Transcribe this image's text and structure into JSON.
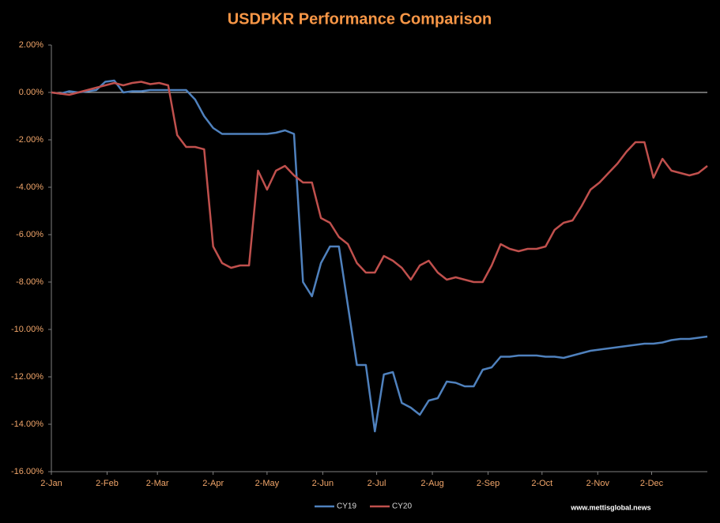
{
  "chart_data": {
    "type": "line",
    "title": "USDPKR Performance Comparison",
    "watermark": "www.mettisglobal.news",
    "x": [
      0,
      5,
      10,
      15,
      20,
      25,
      30,
      35,
      40,
      45,
      50,
      55,
      60,
      65,
      70,
      75,
      80,
      85,
      90,
      95,
      100,
      105,
      110,
      115,
      120,
      125,
      130,
      135,
      140,
      145,
      150,
      155,
      160,
      165,
      170,
      175,
      180,
      185,
      190,
      195,
      200,
      205,
      210,
      215,
      220,
      225,
      230,
      235,
      240,
      245,
      250,
      255,
      260,
      265,
      270,
      275,
      280,
      285,
      290,
      295,
      300,
      305,
      310,
      315,
      320,
      325,
      330,
      335,
      340,
      345,
      350,
      355,
      360,
      365
    ],
    "xlim": [
      0,
      365
    ],
    "xticks": [
      {
        "value": 0,
        "label": "2-Jan"
      },
      {
        "value": 31,
        "label": "2-Feb"
      },
      {
        "value": 59,
        "label": "2-Mar"
      },
      {
        "value": 90,
        "label": "2-Apr"
      },
      {
        "value": 120,
        "label": "2-May"
      },
      {
        "value": 151,
        "label": "2-Jun"
      },
      {
        "value": 181,
        "label": "2-Jul"
      },
      {
        "value": 212,
        "label": "2-Aug"
      },
      {
        "value": 243,
        "label": "2-Sep"
      },
      {
        "value": 273,
        "label": "2-Oct"
      },
      {
        "value": 304,
        "label": "2-Nov"
      },
      {
        "value": 334,
        "label": "2-Dec"
      }
    ],
    "ylim": [
      -16,
      2
    ],
    "yticks": [
      {
        "value": 2,
        "label": "2.00%"
      },
      {
        "value": 0,
        "label": "0.00%"
      },
      {
        "value": -2,
        "label": "-2.00%"
      },
      {
        "value": -4,
        "label": "-4.00%"
      },
      {
        "value": -6,
        "label": "-6.00%"
      },
      {
        "value": -8,
        "label": "-8.00%"
      },
      {
        "value": -10,
        "label": "-10.00%"
      },
      {
        "value": -12,
        "label": "-12.00%"
      },
      {
        "value": -14,
        "label": "-14.00%"
      },
      {
        "value": -16,
        "label": "-16.00%"
      }
    ],
    "series": [
      {
        "name": "CY19",
        "color": "#4f81bd",
        "values": [
          0,
          -0.05,
          0.05,
          0,
          0.05,
          0.1,
          0.45,
          0.5,
          0,
          0.05,
          0.05,
          0.1,
          0.1,
          0.1,
          0.1,
          0.1,
          -0.3,
          -1.0,
          -1.5,
          -1.75,
          -1.75,
          -1.75,
          -1.75,
          -1.75,
          -1.75,
          -1.7,
          -1.6,
          -1.75,
          -8.0,
          -8.6,
          -7.2,
          -6.5,
          -6.5,
          -9.0,
          -11.5,
          -11.5,
          -14.3,
          -11.9,
          -11.8,
          -13.1,
          -13.3,
          -13.6,
          -13.0,
          -12.9,
          -12.2,
          -12.25,
          -12.4,
          -12.4,
          -11.7,
          -11.6,
          -11.15,
          -11.15,
          -11.1,
          -11.1,
          -11.1,
          -11.15,
          -11.15,
          -11.2,
          -11.1,
          -11.0,
          -10.9,
          -10.85,
          -10.8,
          -10.75,
          -10.7,
          -10.65,
          -10.6,
          -10.6,
          -10.55,
          -10.45,
          -10.4,
          -10.4,
          -10.35,
          -10.3
        ]
      },
      {
        "name": "CY20",
        "color": "#c0504d",
        "values": [
          0,
          -0.05,
          -0.1,
          0,
          0.1,
          0.2,
          0.3,
          0.4,
          0.3,
          0.4,
          0.45,
          0.35,
          0.4,
          0.3,
          -1.8,
          -2.3,
          -2.3,
          -2.4,
          -6.5,
          -7.2,
          -7.4,
          -7.3,
          -7.3,
          -3.3,
          -4.1,
          -3.3,
          -3.1,
          -3.5,
          -3.8,
          -3.8,
          -5.3,
          -5.5,
          -6.1,
          -6.4,
          -7.2,
          -7.6,
          -7.6,
          -6.9,
          -7.1,
          -7.4,
          -7.9,
          -7.3,
          -7.1,
          -7.6,
          -7.9,
          -7.8,
          -7.9,
          -8.0,
          -8.0,
          -7.3,
          -6.4,
          -6.6,
          -6.7,
          -6.6,
          -6.6,
          -6.5,
          -5.8,
          -5.5,
          -5.4,
          -4.8,
          -4.1,
          -3.8,
          -3.4,
          -3.0,
          -2.5,
          -2.1,
          -2.1,
          -3.6,
          -2.8,
          -3.3,
          -3.4,
          -3.5,
          -3.4,
          -3.1
        ]
      }
    ]
  }
}
